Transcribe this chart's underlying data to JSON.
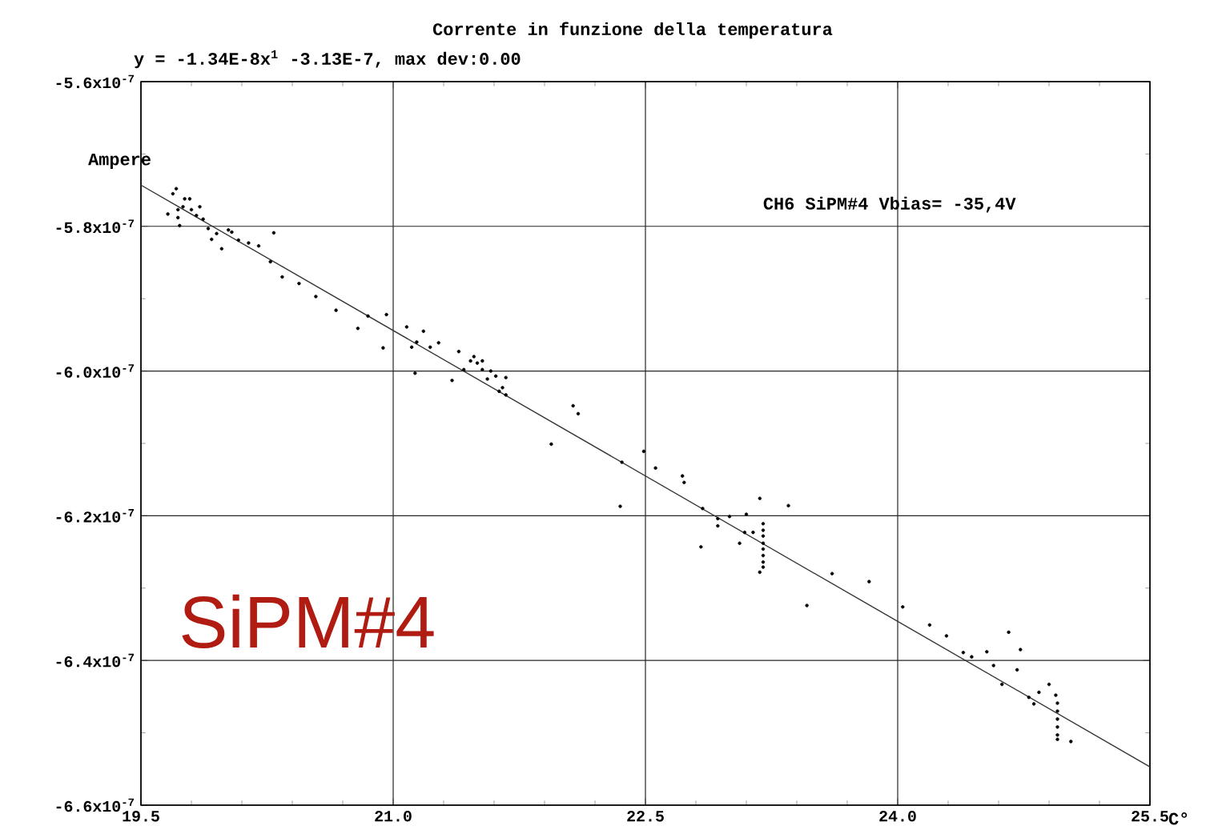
{
  "chart_data": {
    "type": "scatter",
    "title": "Corrente in funzione della temperatura",
    "subtitle": "y = -1.34E-8x$^{1}$ -3.13E-7, max dev:0.00",
    "xlabel": "C°",
    "ylabel": "Ampere",
    "annotations": [
      "CH6 SiPM#4 Vbias= -35,4V",
      "SiPM#4"
    ],
    "xlim": [
      19.5,
      25.5
    ],
    "ylim": [
      -6.6e-07,
      -5.6e-07
    ],
    "xticks": [
      19.5,
      {
        "value": 21.0,
        "label": "21.0"
      },
      22.5,
      {
        "value": 24.0,
        "label": "24.0"
      },
      25.5
    ],
    "yticks": [
      {
        "value": -6.6e-07,
        "label": "-6.6x10$^{-7}$"
      },
      {
        "value": -6.4e-07,
        "label": "-6.4x10$^{-7}$"
      },
      {
        "value": -6.2e-07,
        "label": "-6.2x10$^{-7}$"
      },
      {
        "value": -6e-07,
        "label": "-6.0x10$^{-7}$"
      },
      {
        "value": -5.8e-07,
        "label": "-5.8x10$^{-7}$"
      },
      {
        "value": -5.6e-07,
        "label": "-5.6x10$^{-7}$"
      }
    ],
    "grid": true,
    "marker": "circle",
    "series": [
      {
        "color": "#000000",
        "x": [
          19.66,
          19.69,
          19.71,
          19.72,
          19.72,
          19.73,
          19.75,
          19.76,
          19.79,
          19.8,
          19.83,
          19.85,
          19.87,
          19.9,
          19.92,
          19.95,
          19.98,
          20.02,
          20.04,
          20.08,
          20.14,
          20.2,
          20.29,
          20.27,
          20.34,
          20.44,
          20.54,
          20.66,
          20.79,
          20.85,
          20.94,
          20.96,
          21.08,
          21.11,
          21.14,
          21.18,
          21.22,
          21.13,
          21.27,
          21.35,
          21.39,
          21.42,
          21.46,
          21.48,
          21.5,
          21.53,
          21.53,
          21.56,
          21.58,
          21.61,
          21.63,
          21.65,
          21.67,
          21.67,
          21.94,
          22.07,
          22.1,
          22.36,
          22.49,
          22.56,
          22.35,
          22.72,
          22.73,
          22.84,
          22.83,
          22.93,
          22.93,
          23.0,
          23.06,
          23.1,
          23.09,
          23.14,
          23.18,
          23.18,
          23.2,
          23.2,
          23.2,
          23.2,
          23.2,
          23.2,
          23.2,
          23.2,
          23.35,
          23.46,
          23.61,
          23.83,
          24.03,
          24.19,
          24.29,
          24.39,
          24.44,
          24.53,
          24.57,
          24.66,
          24.73,
          24.71,
          24.62,
          24.78,
          24.81,
          24.84,
          24.9,
          24.94,
          24.95,
          24.95,
          24.95,
          24.95,
          24.95,
          24.95,
          25.03
        ],
        "values": [
          -5.783e-07,
          -5.755e-07,
          -5.748e-07,
          -5.777e-07,
          -5.788e-07,
          -5.799e-07,
          -5.773e-07,
          -5.762e-07,
          -5.762e-07,
          -5.777e-07,
          -5.785e-07,
          -5.773e-07,
          -5.79e-07,
          -5.803e-07,
          -5.818e-07,
          -5.81e-07,
          -5.831e-07,
          -5.805e-07,
          -5.808e-07,
          -5.819e-07,
          -5.823e-07,
          -5.827e-07,
          -5.809e-07,
          -5.849e-07,
          -5.87e-07,
          -5.879e-07,
          -5.897e-07,
          -5.916e-07,
          -5.941e-07,
          -5.924e-07,
          -5.968e-07,
          -5.922e-07,
          -5.939e-07,
          -5.967e-07,
          -5.96e-07,
          -5.945e-07,
          -5.967e-07,
          -6.003e-07,
          -5.961e-07,
          -6.013e-07,
          -5.973e-07,
          -5.998e-07,
          -5.986e-07,
          -5.98e-07,
          -5.989e-07,
          -5.986e-07,
          -5.998e-07,
          -6.011e-07,
          -6e-07,
          -6.007e-07,
          -6.028e-07,
          -6.023e-07,
          -6.009e-07,
          -6.033e-07,
          -6.101e-07,
          -6.048e-07,
          -6.059e-07,
          -6.126e-07,
          -6.111e-07,
          -6.134e-07,
          -6.187e-07,
          -6.145e-07,
          -6.154e-07,
          -6.19e-07,
          -6.243e-07,
          -6.204e-07,
          -6.214e-07,
          -6.201e-07,
          -6.238e-07,
          -6.198e-07,
          -6.223e-07,
          -6.223e-07,
          -6.176e-07,
          -6.278e-07,
          -6.211e-07,
          -6.22e-07,
          -6.228e-07,
          -6.238e-07,
          -6.246e-07,
          -6.255e-07,
          -6.264e-07,
          -6.271e-07,
          -6.186e-07,
          -6.324e-07,
          -6.28e-07,
          -6.291e-07,
          -6.326e-07,
          -6.351e-07,
          -6.366e-07,
          -6.389e-07,
          -6.395e-07,
          -6.388e-07,
          -6.407e-07,
          -6.361e-07,
          -6.385e-07,
          -6.413e-07,
          -6.433e-07,
          -6.451e-07,
          -6.46e-07,
          -6.444e-07,
          -6.433e-07,
          -6.448e-07,
          -6.459e-07,
          -6.47e-07,
          -6.481e-07,
          -6.492e-07,
          -6.503e-07,
          -6.509e-07,
          -6.512e-07
        ]
      },
      {
        "type": "line",
        "marker": "none",
        "color": "#333333",
        "x": [
          19.5,
          25.5
        ],
        "values": [
          -5.743e-07,
          -6.547e-07
        ]
      }
    ]
  }
}
